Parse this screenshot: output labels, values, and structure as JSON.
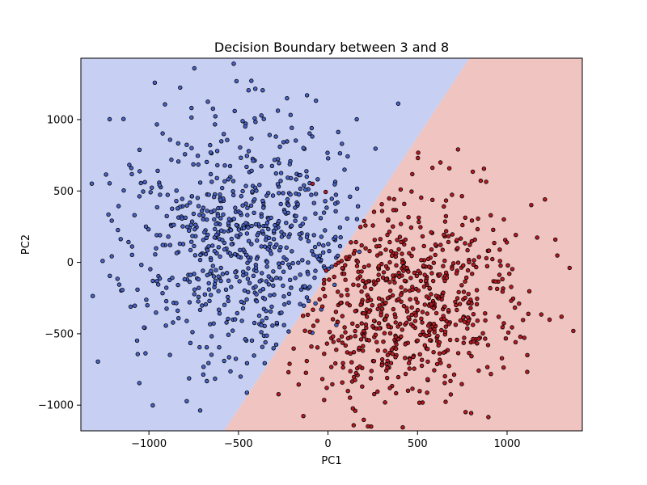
{
  "chart_data": {
    "type": "scatter",
    "title": "Decision Boundary between 3 and 8",
    "xlabel": "PC1",
    "ylabel": "PC2",
    "xlim": [
      -1380,
      1420
    ],
    "ylim": [
      -1180,
      1430
    ],
    "xticks": [
      -1000,
      -500,
      0,
      500,
      1000
    ],
    "yticks": [
      -1000,
      -500,
      0,
      500,
      1000
    ],
    "grid": false,
    "legend": "none",
    "boundary": {
      "x1": -580,
      "y1": -1180,
      "x2": 790,
      "y2": 1430
    },
    "colors": {
      "region_a": "#c7d0f2",
      "region_b": "#efc4c1",
      "class_a_point": "#4a63c9",
      "class_b_point": "#b81a22",
      "edge": "#000000"
    },
    "series": [
      {
        "generator": {
          "count": 720,
          "mean": [
            -470,
            180
          ],
          "sd": [
            330,
            440
          ],
          "seed": 17
        },
        "points": []
      },
      {
        "generator": {
          "count": 700,
          "mean": [
            420,
            -240
          ],
          "sd": [
            320,
            400
          ],
          "seed": 91
        },
        "points": []
      }
    ]
  }
}
